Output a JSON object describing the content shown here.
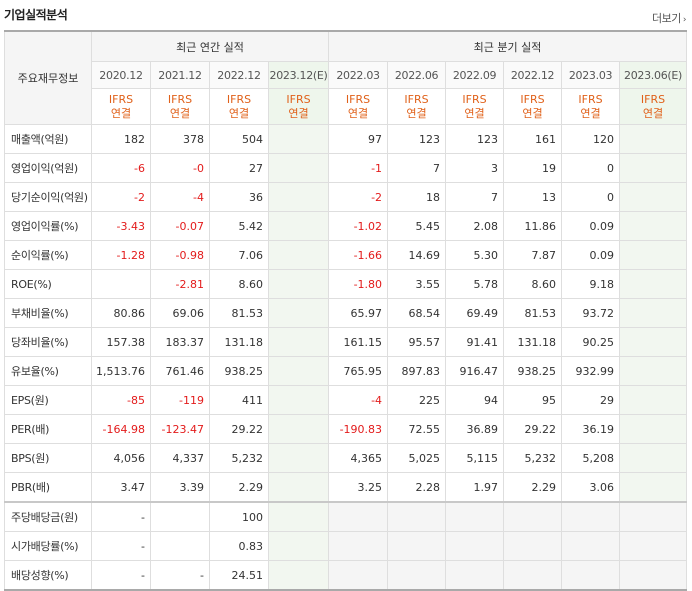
{
  "section_title": "기업실적분석",
  "more_link": "더보기",
  "header": {
    "main_label": "주요재무정보",
    "annual_group": "최근 연간 실적",
    "quarter_group": "최근 분기 실적",
    "annual_dates": [
      "2020.12",
      "2021.12",
      "2022.12",
      "2023.12(E)"
    ],
    "quarter_dates": [
      "2022.03",
      "2022.06",
      "2022.09",
      "2022.12",
      "2023.03",
      "2023.06(E)"
    ],
    "ifrs_top": "IFRS",
    "ifrs_bottom": "연결"
  },
  "rows": [
    {
      "label": "매출액(억원)",
      "values": [
        "182",
        "378",
        "504",
        "",
        "97",
        "123",
        "123",
        "161",
        "120",
        ""
      ]
    },
    {
      "label": "영업이익(억원)",
      "values": [
        "-6",
        "-0",
        "27",
        "",
        "-1",
        "7",
        "3",
        "19",
        "0",
        ""
      ]
    },
    {
      "label": "당기순이익(억원)",
      "values": [
        "-2",
        "-4",
        "36",
        "",
        "-2",
        "18",
        "7",
        "13",
        "0",
        ""
      ]
    },
    {
      "label": "영업이익률(%)",
      "values": [
        "-3.43",
        "-0.07",
        "5.42",
        "",
        "-1.02",
        "5.45",
        "2.08",
        "11.86",
        "0.09",
        ""
      ]
    },
    {
      "label": "순이익률(%)",
      "values": [
        "-1.28",
        "-0.98",
        "7.06",
        "",
        "-1.66",
        "14.69",
        "5.30",
        "7.87",
        "0.09",
        ""
      ]
    },
    {
      "label": "ROE(%)",
      "values": [
        "",
        "-2.81",
        "8.60",
        "",
        "-1.80",
        "3.55",
        "5.78",
        "8.60",
        "9.18",
        ""
      ]
    },
    {
      "label": "부채비율(%)",
      "values": [
        "80.86",
        "69.06",
        "81.53",
        "",
        "65.97",
        "68.54",
        "69.49",
        "81.53",
        "93.72",
        ""
      ]
    },
    {
      "label": "당좌비율(%)",
      "values": [
        "157.38",
        "183.37",
        "131.18",
        "",
        "161.15",
        "95.57",
        "91.41",
        "131.18",
        "90.25",
        ""
      ]
    },
    {
      "label": "유보율(%)",
      "values": [
        "1,513.76",
        "761.46",
        "938.25",
        "",
        "765.95",
        "897.83",
        "916.47",
        "938.25",
        "932.99",
        ""
      ]
    },
    {
      "label": "EPS(원)",
      "values": [
        "-85",
        "-119",
        "411",
        "",
        "-4",
        "225",
        "94",
        "95",
        "29",
        ""
      ]
    },
    {
      "label": "PER(배)",
      "values": [
        "-164.98",
        "-123.47",
        "29.22",
        "",
        "-190.83",
        "72.55",
        "36.89",
        "29.22",
        "36.19",
        ""
      ]
    },
    {
      "label": "BPS(원)",
      "values": [
        "4,056",
        "4,337",
        "5,232",
        "",
        "4,365",
        "5,025",
        "5,115",
        "5,232",
        "5,208",
        ""
      ]
    },
    {
      "label": "PBR(배)",
      "values": [
        "3.47",
        "3.39",
        "2.29",
        "",
        "3.25",
        "2.28",
        "1.97",
        "2.29",
        "3.06",
        ""
      ]
    },
    {
      "label": "주당배당금(원)",
      "values": [
        "-",
        "",
        "100",
        "",
        "",
        "",
        "",
        "",
        "",
        ""
      ],
      "quarter_disabled": true
    },
    {
      "label": "시가배당률(%)",
      "values": [
        "-",
        "",
        "0.83",
        "",
        "",
        "",
        "",
        "",
        "",
        ""
      ],
      "quarter_disabled": true
    },
    {
      "label": "배당성향(%)",
      "values": [
        "-",
        "-",
        "24.51",
        "",
        "",
        "",
        "",
        "",
        "",
        ""
      ],
      "quarter_disabled": true
    }
  ],
  "colors": {
    "negative": "#e31b1b",
    "ifrs": "#e0611a",
    "estimate_bg": "#f2f7f0"
  }
}
